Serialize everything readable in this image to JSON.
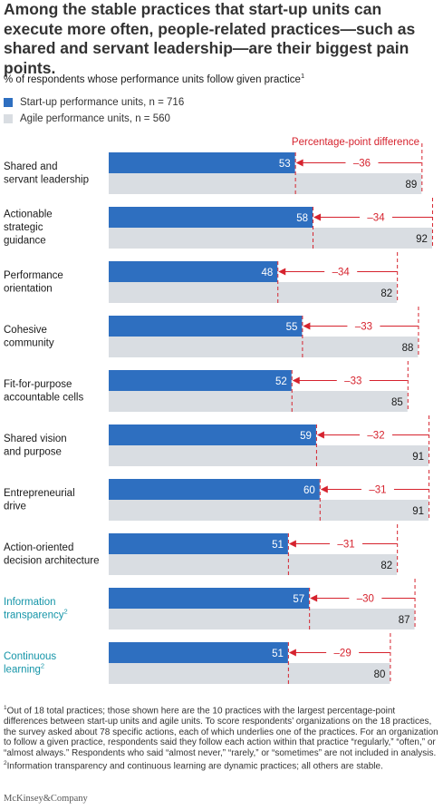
{
  "header": {
    "title": "Among the stable practices that start-up units can execute more often, people-related practices—such as shared and servant leadership—are their biggest pain points.",
    "subtitle": "% of respondents whose performance units follow given practice",
    "subtitle_footnote_mark": "1"
  },
  "legend": {
    "startup_label": "Start-up performance units, n = 716",
    "agile_label": "Agile performance units, n = 560"
  },
  "colors": {
    "startup": "#2e6fc0",
    "agile": "#d9dde2",
    "difference": "#d6232e",
    "dynamic_label": "#1595a8",
    "stable_label": "#1a1a1a"
  },
  "chart_data": {
    "type": "bar",
    "orientation": "horizontal",
    "difference_header": "Percentage-point difference",
    "categories": [
      {
        "label_lines": [
          "Shared and",
          "servant leadership"
        ],
        "footnote": "",
        "dynamic": false
      },
      {
        "label_lines": [
          "Actionable",
          "strategic",
          "guidance"
        ],
        "footnote": "",
        "dynamic": false
      },
      {
        "label_lines": [
          "Performance",
          "orientation"
        ],
        "footnote": "",
        "dynamic": false
      },
      {
        "label_lines": [
          "Cohesive",
          "community"
        ],
        "footnote": "",
        "dynamic": false
      },
      {
        "label_lines": [
          "Fit-for-purpose",
          "accountable cells"
        ],
        "footnote": "",
        "dynamic": false
      },
      {
        "label_lines": [
          "Shared vision",
          "and purpose"
        ],
        "footnote": "",
        "dynamic": false
      },
      {
        "label_lines": [
          "Entrepreneurial",
          "drive"
        ],
        "footnote": "",
        "dynamic": false
      },
      {
        "label_lines": [
          "Action-oriented",
          "decision architecture"
        ],
        "footnote": "",
        "dynamic": false
      },
      {
        "label_lines": [
          "Information",
          "transparency"
        ],
        "footnote": "2",
        "dynamic": true
      },
      {
        "label_lines": [
          "Continuous",
          "learning"
        ],
        "footnote": "2",
        "dynamic": true
      }
    ],
    "series": [
      {
        "name": "Start-up performance units, n = 716",
        "values": [
          53,
          58,
          48,
          55,
          52,
          59,
          60,
          51,
          57,
          51
        ]
      },
      {
        "name": "Agile performance units, n = 560",
        "values": [
          89,
          92,
          82,
          88,
          85,
          91,
          91,
          82,
          87,
          80
        ]
      }
    ],
    "differences": [
      "–36",
      "–34",
      "–34",
      "–33",
      "–33",
      "–32",
      "–31",
      "–31",
      "–30",
      "–29"
    ],
    "xlim": [
      0,
      100
    ]
  },
  "footnotes": [
    {
      "mark": "1",
      "text": "Out of 18 total practices; those shown here are the 10 practices with the largest percentage-point differences between start-up units and agile units. To score respondents’ organizations on the 18 practices, the survey asked about 78 specific actions, each of which underlies one of the practices. For an organization to follow a given practice, respondents said they follow each action within that practice “regularly,” “often,” or “almost always.” Respondents who said “almost never,” “rarely,” or “sometimes” are not included in analysis."
    },
    {
      "mark": "2",
      "text": "Information transparency and continuous learning are dynamic practices; all others are stable."
    }
  ],
  "brand": "McKinsey&Company"
}
